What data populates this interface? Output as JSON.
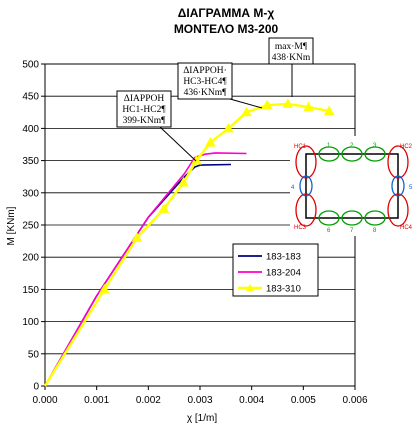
{
  "chart_data": {
    "type": "line",
    "title": "ΔΙΑΓΡΑΜΜΑ Μ-χ",
    "subtitle": "ΜΟΝΤΕΛΟ Μ3-200",
    "xlabel": "χ [1/m]",
    "ylabel": "M [KNm]",
    "xlim": [
      0,
      0.006
    ],
    "ylim": [
      0,
      500
    ],
    "x_ticks": [
      "0.000",
      "0.001",
      "0.002",
      "0.003",
      "0.004",
      "0.005",
      "0.006"
    ],
    "y_ticks": [
      "0",
      "50",
      "100",
      "150",
      "200",
      "250",
      "300",
      "350",
      "400",
      "450",
      "500"
    ],
    "grid": "horizontal",
    "legend_position": "lower-right",
    "series": [
      {
        "name": "183-183",
        "color": "#000080",
        "marker": "none",
        "points": [
          [
            0,
            0
          ],
          [
            0.001,
            140
          ],
          [
            0.002,
            262
          ],
          [
            0.0027,
            325
          ],
          [
            0.0029,
            340
          ],
          [
            0.003,
            343
          ],
          [
            0.0036,
            344
          ]
        ]
      },
      {
        "name": "183-204",
        "color": "#ff00cc",
        "marker": "none",
        "points": [
          [
            0,
            0
          ],
          [
            0.001,
            140
          ],
          [
            0.002,
            262
          ],
          [
            0.0027,
            330
          ],
          [
            0.0029,
            355
          ],
          [
            0.0031,
            360
          ],
          [
            0.0033,
            362
          ],
          [
            0.0039,
            361
          ]
        ]
      },
      {
        "name": "183-310",
        "color": "#ffff00",
        "marker": "triangle",
        "points": [
          [
            0,
            0
          ],
          [
            0.00115,
            150
          ],
          [
            0.00178,
            230
          ],
          [
            0.0023,
            275
          ],
          [
            0.00268,
            316
          ],
          [
            0.00293,
            350
          ],
          [
            0.0032,
            378
          ],
          [
            0.00355,
            400
          ],
          [
            0.0039,
            425
          ],
          [
            0.0043,
            436
          ],
          [
            0.0047,
            438
          ],
          [
            0.0051,
            433
          ],
          [
            0.0055,
            427
          ]
        ]
      }
    ],
    "annotations": [
      {
        "lines": [
          "ΔΙΑΡΡΟΗ",
          "HC1-HC2¶",
          "399-KNm¶"
        ]
      },
      {
        "lines": [
          "ΔΙΑΡΡΟΗ·",
          "HC3-HC4¶",
          "436·KNm¶"
        ]
      },
      {
        "lines": [
          "max·M¶",
          "438·KNm"
        ]
      }
    ],
    "inset": {
      "labels": [
        "HC1",
        "HC2",
        "HC3",
        "HC4",
        "1",
        "2",
        "3",
        "4",
        "5",
        "6",
        "7",
        "8"
      ]
    }
  }
}
